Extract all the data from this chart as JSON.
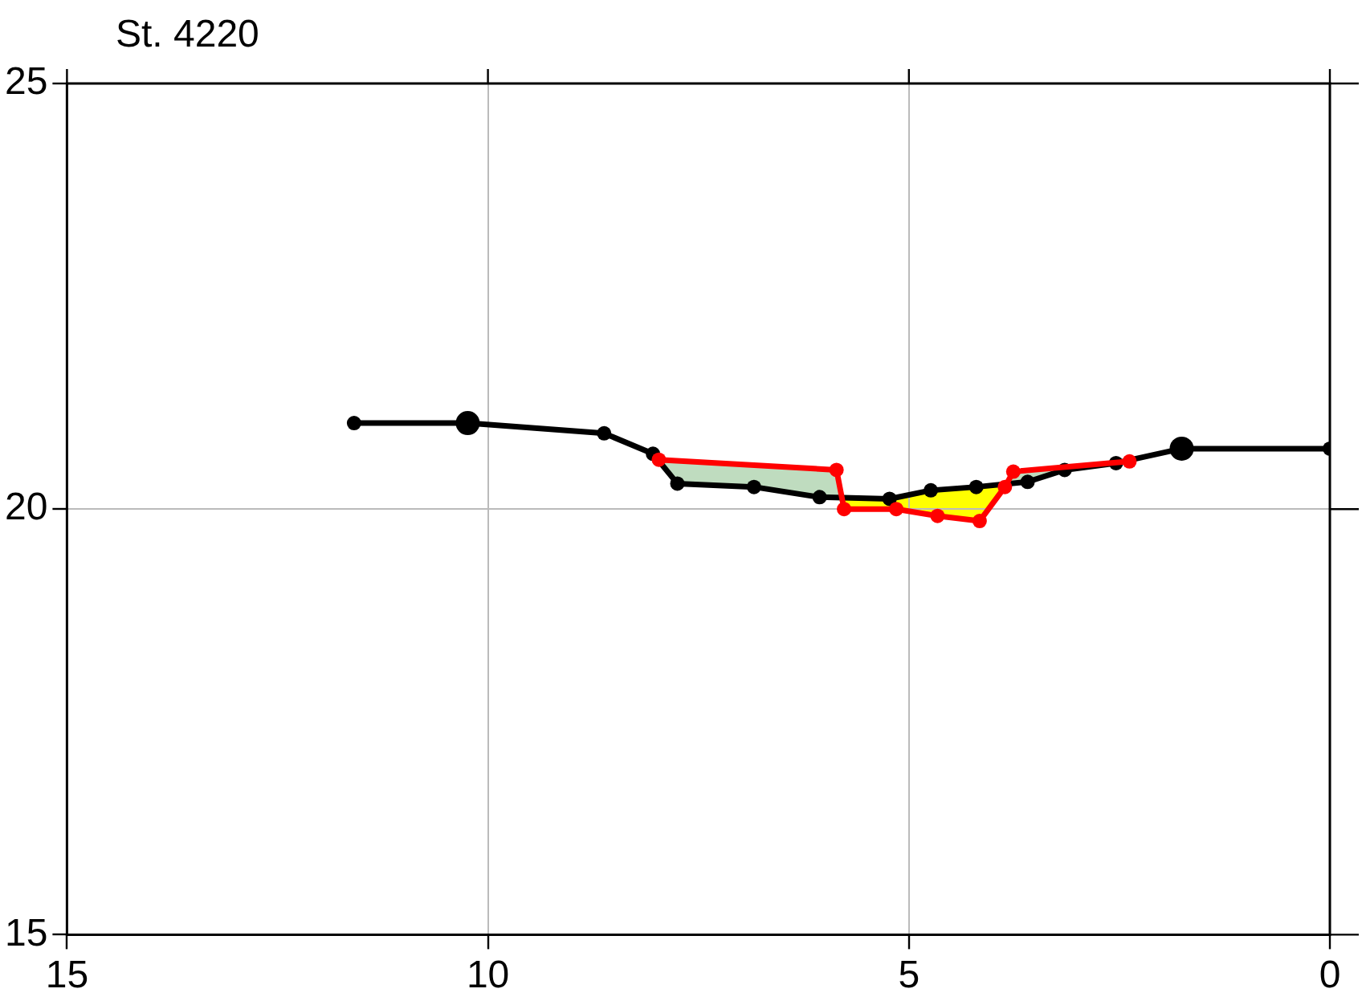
{
  "chart_data": {
    "type": "line",
    "title": "St. 4220",
    "xlim": [
      15,
      0
    ],
    "xticks": [
      15,
      10,
      5,
      0
    ],
    "ylim": [
      15,
      25
    ],
    "yticks": [
      15,
      20,
      25
    ],
    "grid": true,
    "legend": false,
    "marker": "circle",
    "line_style": "solid",
    "series": [
      {
        "color": "#000000",
        "x": [
          11.59,
          10.24,
          8.62,
          8.04,
          7.75,
          6.84,
          6.06,
          5.23,
          4.74,
          4.2,
          3.59,
          3.15,
          2.54,
          1.76,
          0
        ],
        "values": [
          21.01,
          21.01,
          20.89,
          20.65,
          20.3,
          20.26,
          20.14,
          20.12,
          20.22,
          20.26,
          20.32,
          20.46,
          20.54,
          20.71,
          20.71
        ]
      },
      {
        "color": "#ff0000",
        "x": [
          7.97,
          5.86,
          5.77,
          5.15,
          4.66,
          4.16,
          3.86,
          3.76,
          2.38
        ],
        "values": [
          20.58,
          20.46,
          20.0,
          20.0,
          19.92,
          19.86,
          20.26,
          20.44,
          20.56
        ]
      }
    ]
  }
}
